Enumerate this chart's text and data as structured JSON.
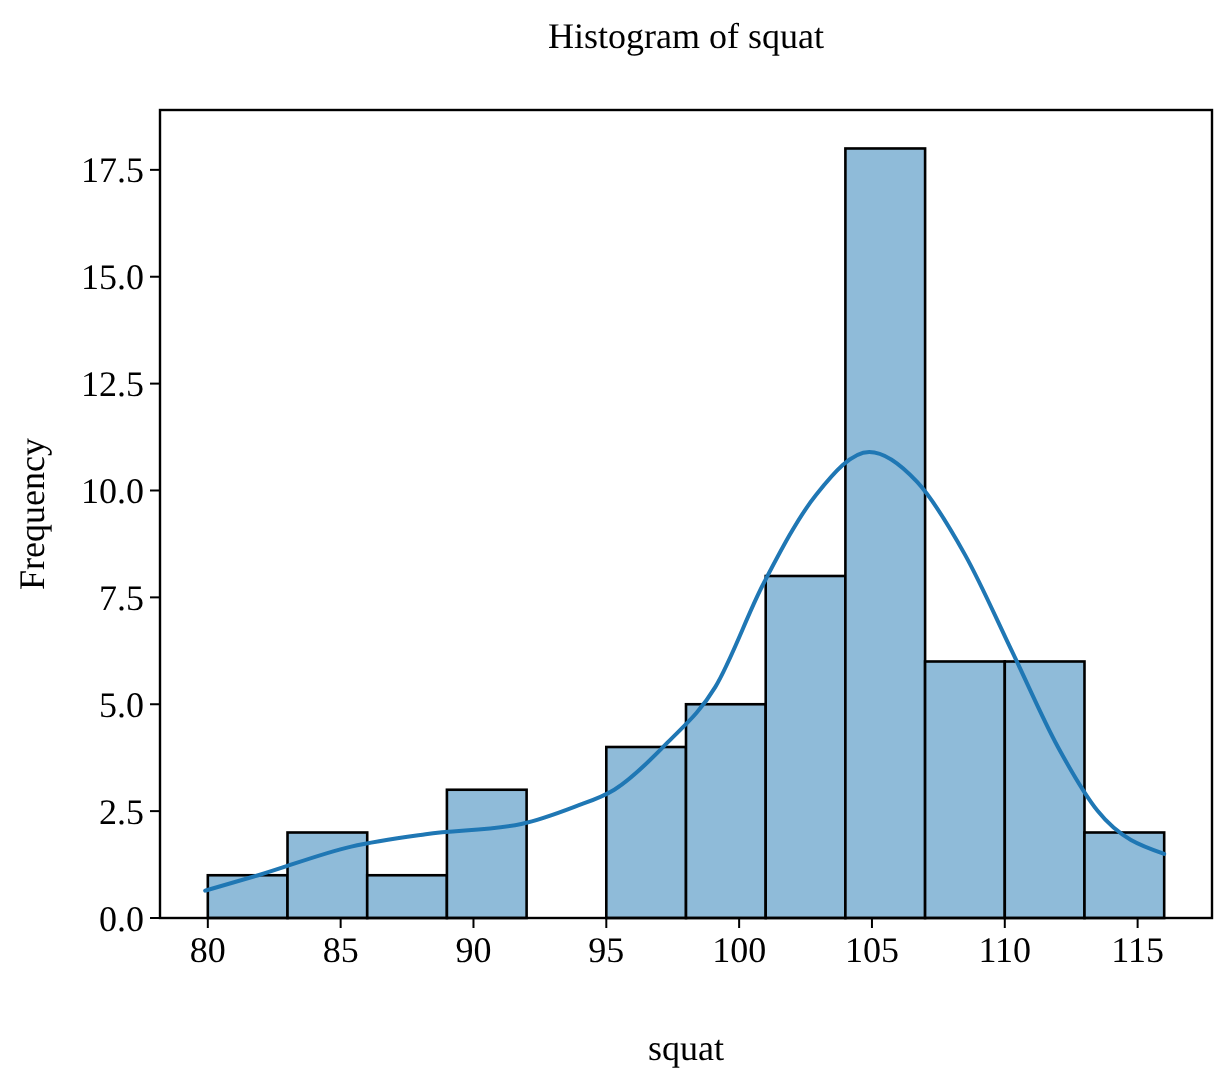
{
  "chart_data": {
    "type": "histogram",
    "title": "Histogram of squat",
    "xlabel": "squat",
    "ylabel": "Frequency",
    "bins": [
      80,
      83,
      86,
      89,
      92,
      95,
      98,
      101,
      104,
      107,
      110,
      113,
      116
    ],
    "values": [
      1,
      2,
      1,
      3,
      0,
      4,
      5,
      8,
      18,
      6,
      6,
      2
    ],
    "color": "#8fbbd9",
    "series": [
      {
        "type": "line",
        "color": "#1f77b4",
        "x": [
          79.9,
          81.9,
          85.4,
          88.2,
          91.8,
          93.8,
          95.3,
          97.3,
          99.1,
          100.9,
          102.9,
          104.9,
          106.7,
          108.5,
          110.3,
          112,
          113.5,
          116
        ],
        "values": [
          0.64,
          1.0,
          1.67,
          1.96,
          2.2,
          2.6,
          3.0,
          4.1,
          5.4,
          7.8,
          9.9,
          10.9,
          10.2,
          8.5,
          6.2,
          4.0,
          2.5,
          1.5
        ]
      }
    ],
    "xlim": [
      78.2,
      117.8
    ],
    "ylim": [
      0,
      18.9
    ],
    "xticks": [
      80,
      85,
      90,
      95,
      100,
      105,
      110,
      115
    ],
    "yticks": [
      {
        "value": 0,
        "label": "0.0"
      },
      {
        "value": 2.5,
        "label": "2.5"
      },
      {
        "value": 5,
        "label": "5.0"
      },
      {
        "value": 7.5,
        "label": "7.5"
      },
      {
        "value": 10,
        "label": "10.0"
      },
      {
        "value": 12.5,
        "label": "12.5"
      },
      {
        "value": 15,
        "label": "15.0"
      },
      {
        "value": 17.5,
        "label": "17.5"
      }
    ],
    "grid": false
  }
}
